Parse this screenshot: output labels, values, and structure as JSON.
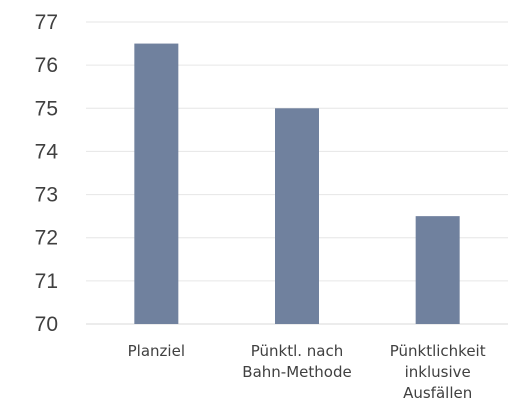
{
  "chart_data": {
    "type": "bar",
    "categories": [
      [
        "Planziel"
      ],
      [
        "Pünktl. nach",
        "Bahn-Methode"
      ],
      [
        "Pünktlichkeit",
        "inklusive",
        "Ausfällen"
      ]
    ],
    "values": [
      76.5,
      75.0,
      72.5
    ],
    "ylim": [
      70,
      77
    ],
    "yticks": [
      70,
      71,
      72,
      73,
      74,
      75,
      76,
      77
    ],
    "grid": true,
    "legend": "none",
    "bar_color": "#70819e",
    "title": "",
    "xlabel": "",
    "ylabel": ""
  }
}
